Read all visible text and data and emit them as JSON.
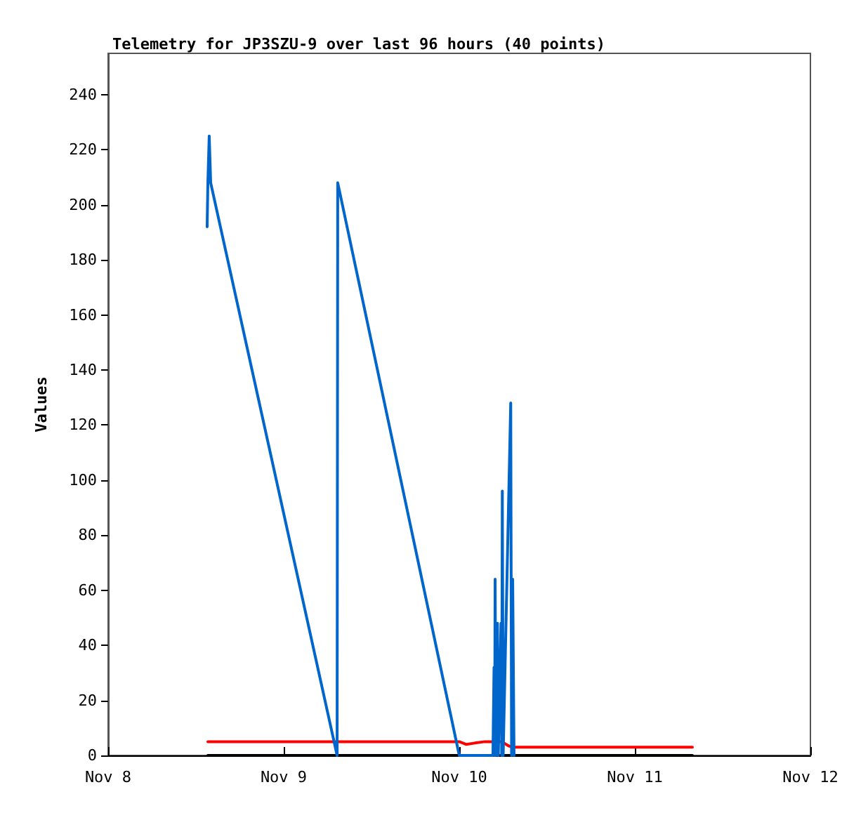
{
  "chart_data": {
    "type": "line",
    "title": "Telemetry for JP3SZU-9 over last 96 hours (40 points)",
    "ylabel": "Values",
    "xlim": [
      "--11-08",
      "--11-12"
    ],
    "xticks": [
      {
        "value": "--11-08",
        "label": "Nov 8"
      },
      {
        "value": "--11-09",
        "label": "Nov 9"
      },
      {
        "value": "--11-10",
        "label": "Nov 10"
      },
      {
        "value": "--11-11",
        "label": "Nov 11"
      },
      {
        "value": "--11-12",
        "label": "Nov 12"
      }
    ],
    "ylim": [
      0,
      255
    ],
    "yticks": [
      0,
      20,
      40,
      60,
      80,
      100,
      120,
      140,
      160,
      180,
      200,
      220,
      240
    ],
    "grid": false,
    "marker": "none",
    "line_style": "solid",
    "series": [
      {
        "color": "#000000",
        "x": [
          "--11-08T13:38",
          "--11-11T07:52"
        ],
        "values": [
          0,
          0
        ]
      },
      {
        "color": "#ff0000",
        "x": [
          "--11-08T13:38",
          "--11-10T00:00",
          "--11-10T00:58",
          "--11-10T02:07",
          "--11-10T03:30",
          "--11-10T05:48",
          "--11-10T06:43",
          "--11-10T07:18",
          "--11-11T07:52"
        ],
        "values": [
          5,
          5,
          4,
          4.5,
          5,
          5,
          3.5,
          3,
          3
        ]
      },
      {
        "color": "#0066cc",
        "x": [
          "--11-08T13:32",
          "--11-08T13:38",
          "--11-08T13:49",
          "--11-08T14:01",
          "--11-09T07:18",
          "--11-09T07:23",
          "--11-10T00:00",
          "--11-10T04:36",
          "--11-10T04:45",
          "--11-10T04:50",
          "--11-10T04:54",
          "--11-10T05:00",
          "--11-10T05:13",
          "--11-10T05:20",
          "--11-10T05:42",
          "--11-10T05:48",
          "--11-10T05:53",
          "--11-10T06:00",
          "--11-10T07:02",
          "--11-10T07:09",
          "--11-10T07:18",
          "--11-10T07:29"
        ],
        "values": [
          192,
          208,
          225,
          208,
          0,
          208,
          0,
          0,
          32,
          0,
          64,
          0,
          48,
          0,
          48,
          0,
          96,
          0,
          128,
          0,
          64,
          0
        ]
      }
    ]
  }
}
